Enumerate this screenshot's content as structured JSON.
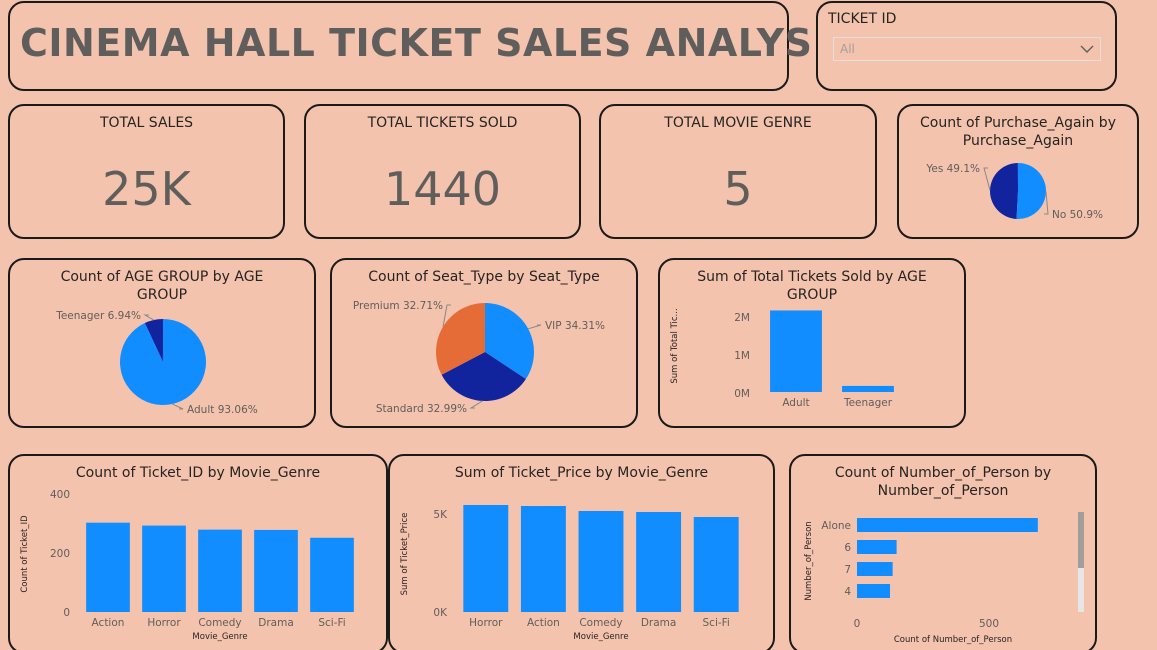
{
  "header": {
    "title": "CINEMA HALL TICKET SALES ANALYSIS"
  },
  "slicer": {
    "label": "TICKET ID",
    "selected": "All"
  },
  "kpis": {
    "total_sales": {
      "label": "TOTAL SALES",
      "value": "25K"
    },
    "total_tickets": {
      "label": "TOTAL TICKETS SOLD",
      "value": "1440"
    },
    "total_genre": {
      "label": "TOTAL MOVIE GENRE",
      "value": "5"
    }
  },
  "colors": {
    "light_blue": "#118dff",
    "dark_blue": "#12239e",
    "orange": "#e66c37",
    "background": "#f4c3ad"
  },
  "chart_data": [
    {
      "id": "purchase_again",
      "type": "pie",
      "title_lines": [
        "Count of Purchase_Again by",
        "Purchase_Again"
      ],
      "slices": [
        {
          "label": "Yes",
          "pct": 49.1,
          "pct_label": "49.1%",
          "color": "#12239e"
        },
        {
          "label": "No",
          "pct": 50.9,
          "pct_label": "50.9%",
          "color": "#118dff"
        }
      ]
    },
    {
      "id": "age_group",
      "type": "pie",
      "title_lines": [
        "Count of AGE GROUP by AGE",
        "GROUP"
      ],
      "slices": [
        {
          "label": "Teenager",
          "pct": 6.94,
          "pct_label": "6.94%",
          "color": "#12239e"
        },
        {
          "label": "Adult",
          "pct": 93.06,
          "pct_label": "93.06%",
          "color": "#118dff"
        }
      ]
    },
    {
      "id": "seat_type",
      "type": "pie",
      "title_lines": [
        "Count of Seat_Type by Seat_Type"
      ],
      "slices": [
        {
          "label": "VIP",
          "pct": 34.31,
          "pct_label": "34.31%",
          "color": "#118dff"
        },
        {
          "label": "Standard",
          "pct": 32.99,
          "pct_label": "32.99%",
          "color": "#12239e"
        },
        {
          "label": "Premium",
          "pct": 32.71,
          "pct_label": "32.71%",
          "color": "#e66c37"
        }
      ]
    },
    {
      "id": "tickets_by_age",
      "type": "bar",
      "title_lines": [
        "Sum of Total Tickets Sold by AGE",
        "GROUP"
      ],
      "categories": [
        "Adult",
        "Teenager"
      ],
      "values": [
        1950000,
        145000
      ],
      "ylabel": "Sum of Total Tic...",
      "xlabel": "",
      "yticks": [
        "0M",
        "1M",
        "2M"
      ],
      "ylim": [
        0,
        2200000
      ]
    },
    {
      "id": "ticket_count_by_genre",
      "type": "bar",
      "title_lines": [
        "Count of Ticket_ID by Movie_Genre"
      ],
      "categories": [
        "Action",
        "Horror",
        "Comedy",
        "Drama",
        "Sci-Fi"
      ],
      "values": [
        308,
        298,
        284,
        283,
        256
      ],
      "ylabel": "Count of Ticket_ID",
      "xlabel": "Movie_Genre",
      "yticks": [
        "0",
        "200",
        "400"
      ],
      "ylim": [
        0,
        400
      ]
    },
    {
      "id": "price_by_genre",
      "type": "bar",
      "title_lines": [
        "Sum of Ticket_Price by Movie_Genre"
      ],
      "categories": [
        "Horror",
        "Action",
        "Comedy",
        "Drama",
        "Sci-Fi"
      ],
      "values": [
        5350,
        5300,
        5050,
        5000,
        4750
      ],
      "ylabel": "Sum of Ticket_Price",
      "xlabel": "Movie_Genre",
      "yticks": [
        "0K",
        "5K"
      ],
      "ylim": [
        0,
        5800
      ]
    },
    {
      "id": "number_of_person",
      "type": "bar",
      "orientation": "horizontal",
      "title_lines": [
        "Count of Number_of_Person by",
        "Number_of_Person"
      ],
      "categories": [
        "Alone",
        "6",
        "7",
        "4"
      ],
      "values": [
        685,
        150,
        135,
        125
      ],
      "ylabel": "Number_of_Person",
      "xlabel": "Count of Number_of_Person",
      "xticks": [
        "0",
        "500"
      ],
      "xlim": [
        0,
        750
      ]
    }
  ]
}
